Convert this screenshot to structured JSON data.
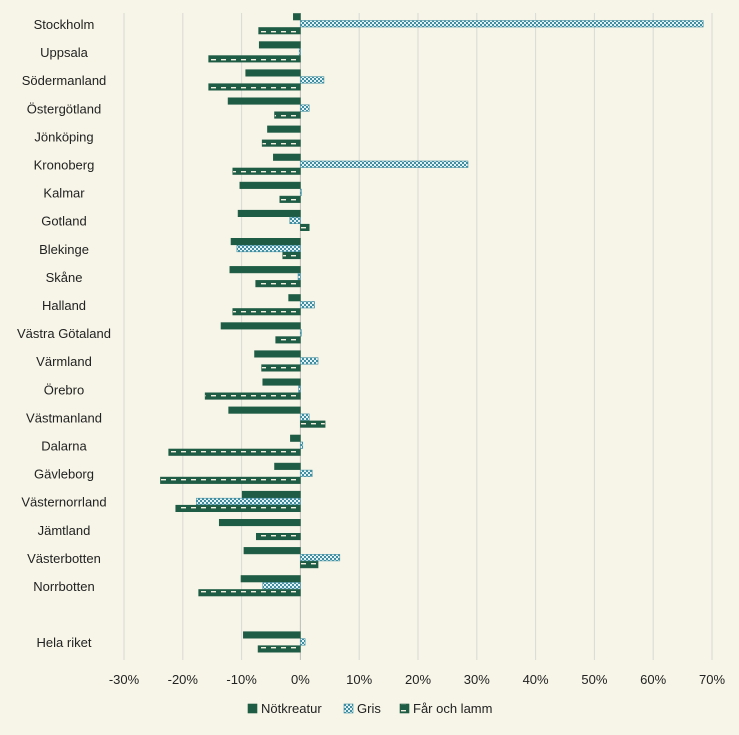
{
  "chart_data": {
    "type": "bar",
    "orientation": "horizontal",
    "title": "",
    "xlabel": "",
    "ylabel": "",
    "xlim": [
      -30,
      70
    ],
    "x_ticks": [
      -30,
      -20,
      -10,
      0,
      10,
      20,
      30,
      40,
      50,
      60,
      70
    ],
    "x_tick_labels": [
      "-30%",
      "-20%",
      "-10%",
      "0%",
      "10%",
      "20%",
      "30%",
      "40%",
      "50%",
      "60%",
      "70%"
    ],
    "grid": "vertical",
    "legend_position": "bottom",
    "categories": [
      "Stockholm",
      "Uppsala",
      "Södermanland",
      "Östergötland",
      "Jönköping",
      "Kronoberg",
      "Kalmar",
      "Gotland",
      "Blekinge",
      "Skåne",
      "Halland",
      "Västra Götaland",
      "Värmland",
      "Örebro",
      "Västmanland",
      "Dalarna",
      "Gävleborg",
      "Västernorrland",
      "Jämtland",
      "Västerbotten",
      "Norrbotten",
      "",
      "Hela riket"
    ],
    "series": [
      {
        "name": "Nötkreatur",
        "color": "#1f5c45",
        "pattern": "solid",
        "values": [
          -1.2,
          -7.0,
          -9.3,
          -12.3,
          -5.6,
          -4.6,
          -10.3,
          -10.6,
          -11.8,
          -12.0,
          -2.0,
          -13.5,
          -7.8,
          -6.4,
          -12.2,
          -1.7,
          -4.4,
          -9.9,
          -13.8,
          -9.6,
          -10.1,
          null,
          -9.7
        ]
      },
      {
        "name": "Gris",
        "color": "#4f9fb2",
        "pattern": "checker",
        "values": [
          68.5,
          -0.2,
          4.0,
          1.5,
          0.0,
          28.5,
          0.1,
          -1.8,
          -10.8,
          -0.4,
          2.4,
          0.1,
          3.0,
          -0.3,
          1.5,
          0.4,
          2.0,
          -17.7,
          0.0,
          6.7,
          -6.4,
          null,
          0.8
        ]
      },
      {
        "name": "Får och lamm",
        "color": "#1f5c45",
        "pattern": "dashed",
        "values": [
          -7.1,
          -15.6,
          -15.6,
          -4.4,
          -6.5,
          -11.5,
          -3.5,
          1.5,
          -3.0,
          -7.6,
          -11.5,
          -4.2,
          -6.6,
          -16.2,
          4.2,
          -22.4,
          -23.8,
          -21.2,
          -7.5,
          3.0,
          -17.3,
          null,
          -7.2
        ]
      }
    ]
  }
}
